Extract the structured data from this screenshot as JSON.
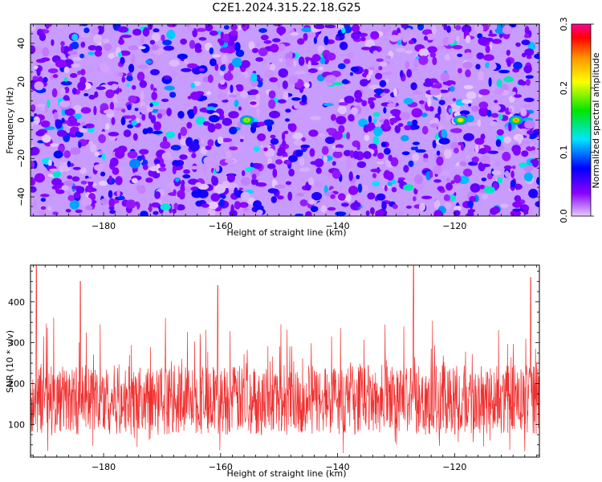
{
  "title": "C2E1.2024.315.22.18.G25",
  "chart_data": [
    {
      "type": "heatmap",
      "xlabel": "Height of straight line (km)",
      "ylabel": "Frequency (Hz)",
      "xlim": [
        -192.5,
        -105.5
      ],
      "ylim": [
        -50,
        50
      ],
      "xticks": [
        -180,
        -160,
        -140,
        -120
      ],
      "yticks": [
        -40,
        -20,
        0,
        20,
        40
      ],
      "grid": false,
      "colorbar": {
        "label": "Normalized spectral amplitude",
        "range": [
          0,
          0.3
        ],
        "ticks": [
          "0.0",
          "0.1",
          "0.2",
          "0.3"
        ],
        "colors": [
          "#e6ccff",
          "#8a00ff",
          "#0000ff",
          "#00e6ff",
          "#00e600",
          "#ffff00",
          "#ff9900",
          "#ff0000",
          "#ff0099"
        ]
      },
      "hot_spots": [
        {
          "x": -155.5,
          "y": 0,
          "value": 0.18
        },
        {
          "x": -119.0,
          "y": 0,
          "value": 0.22
        },
        {
          "x": -109.5,
          "y": 0,
          "value": 0.25
        }
      ]
    },
    {
      "type": "line",
      "xlabel": "Height of straight line (km)",
      "ylabel": "SNR (10 * v/v)",
      "xlim": [
        -192.5,
        -105.5
      ],
      "ylim": [
        20,
        490
      ],
      "xticks": [
        -180,
        -160,
        -140,
        -120
      ],
      "yticks": [
        100,
        200,
        300,
        400
      ],
      "grid": false,
      "series": [
        {
          "color": "#f03030",
          "mean": 160,
          "min": 30,
          "max": 490,
          "peaks": [
            [
              -191.5,
              490
            ],
            [
              -127.0,
              490
            ],
            [
              -184.0,
              450
            ],
            [
              -107.0,
              460
            ],
            [
              -160.5,
              440
            ]
          ]
        }
      ]
    }
  ]
}
